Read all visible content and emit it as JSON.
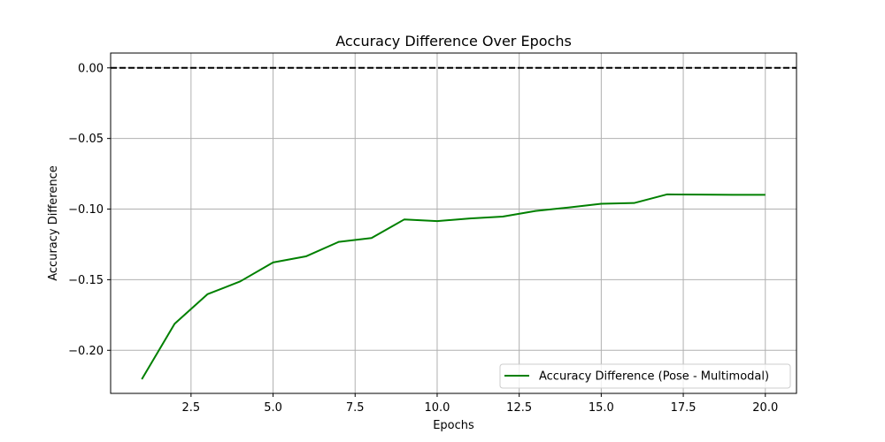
{
  "chart_data": {
    "type": "line",
    "title": "Accuracy Difference Over Epochs",
    "xlabel": "Epochs",
    "ylabel": "Accuracy Difference",
    "xlim": [
      0.05,
      20.95
    ],
    "ylim": [
      -0.2305,
      0.0105
    ],
    "xticks": [
      2.5,
      5.0,
      7.5,
      10.0,
      12.5,
      15.0,
      17.5,
      20.0
    ],
    "xtick_labels": [
      "2.5",
      "5.0",
      "7.5",
      "10.0",
      "12.5",
      "15.0",
      "17.5",
      "20.0"
    ],
    "yticks": [
      0.0,
      -0.05,
      -0.1,
      -0.15,
      -0.2
    ],
    "ytick_labels": [
      "0.00",
      "−0.05",
      "−0.10",
      "−0.15",
      "−0.20"
    ],
    "grid": true,
    "legend_position": "lower-right",
    "reference_line": {
      "y": 0.0,
      "style": "dashed",
      "color": "#000000"
    },
    "series": [
      {
        "name": "Accuracy Difference (Pose - Multimodal)",
        "color": "#008000",
        "x": [
          1,
          2,
          3,
          4,
          5,
          6,
          7,
          8,
          9,
          10,
          11,
          12,
          13,
          14,
          15,
          16,
          17,
          18,
          19,
          20
        ],
        "y": [
          -0.2205,
          -0.1812,
          -0.1603,
          -0.1512,
          -0.1378,
          -0.1335,
          -0.1232,
          -0.1205,
          -0.1073,
          -0.1085,
          -0.1066,
          -0.1053,
          -0.1013,
          -0.0989,
          -0.0962,
          -0.0957,
          -0.0896,
          -0.0897,
          -0.0899,
          -0.0899
        ]
      }
    ]
  }
}
